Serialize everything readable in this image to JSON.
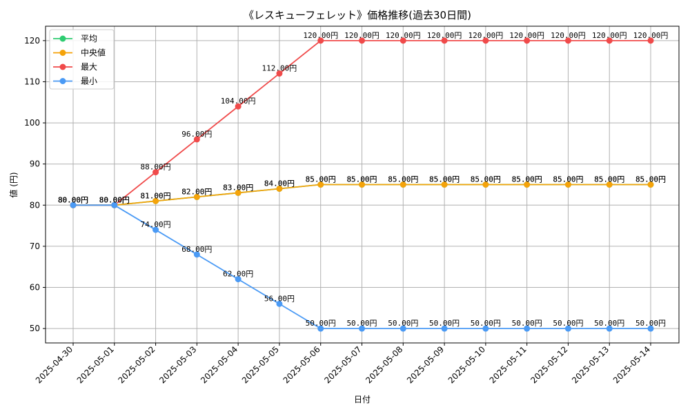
{
  "chart_data": {
    "type": "line",
    "title": "《レスキューフェレット》価格推移(過去30日間)",
    "xlabel": "日付",
    "ylabel": "値 (円)",
    "ylim": [
      46.5,
      123.5
    ],
    "yticks": [
      50,
      60,
      70,
      80,
      90,
      100,
      110,
      120
    ],
    "grid": true,
    "legend_position": "top-left",
    "label_suffix": "円",
    "categories": [
      "2025-04-30",
      "2025-05-01",
      "2025-05-02",
      "2025-05-03",
      "2025-05-04",
      "2025-05-05",
      "2025-05-06",
      "2025-05-07",
      "2025-05-08",
      "2025-05-09",
      "2025-05-10",
      "2025-05-11",
      "2025-05-12",
      "2025-05-13",
      "2025-05-14"
    ],
    "series": [
      {
        "name": "平均",
        "color": "#2ecc71",
        "values": [
          80,
          80,
          81,
          82,
          83,
          84,
          85,
          85,
          85,
          85,
          85,
          85,
          85,
          85,
          85
        ],
        "labels": [
          "80.00円",
          "80.00円",
          "81.00円",
          "82.00円",
          "83.00円",
          "84.00円",
          "85.00円",
          "85.00円",
          "85.00円",
          "85.00円",
          "85.00円",
          "85.00円",
          "85.00円",
          "85.00円",
          "85.00円"
        ]
      },
      {
        "name": "中央値",
        "color": "#f5a30a",
        "values": [
          80,
          80,
          81,
          82,
          83,
          84,
          85,
          85,
          85,
          85,
          85,
          85,
          85,
          85,
          85
        ],
        "labels": [
          "80.00円",
          "80.00円",
          "81.00円",
          "82.00円",
          "83.00円",
          "84.00円",
          "85.00円",
          "85.00円",
          "85.00円",
          "85.00円",
          "85.00円",
          "85.00円",
          "85.00円",
          "85.00円",
          "85.00円"
        ]
      },
      {
        "name": "最大",
        "color": "#f04a4a",
        "values": [
          80,
          80,
          88,
          96,
          104,
          112,
          120,
          120,
          120,
          120,
          120,
          120,
          120,
          120,
          120
        ],
        "labels": [
          "80.00円",
          "80.00円",
          "88.00円",
          "96.00円",
          "104.00円",
          "112.00円",
          "120.00円",
          "120.00円",
          "120.00円",
          "120.00円",
          "120.00円",
          "120.00円",
          "120.00円",
          "120.00円",
          "120.00円"
        ]
      },
      {
        "name": "最小",
        "color": "#4a9af5",
        "values": [
          80,
          80,
          74,
          68,
          62,
          56,
          50,
          50,
          50,
          50,
          50,
          50,
          50,
          50,
          50
        ],
        "labels": [
          "80.00円",
          "80.00円",
          "74.00円",
          "68.00円",
          "62.00円",
          "56.00円",
          "50.00円",
          "50.00円",
          "50.00円",
          "50.00円",
          "50.00円",
          "50.00円",
          "50.00円",
          "50.00円",
          "50.00円"
        ]
      }
    ]
  }
}
